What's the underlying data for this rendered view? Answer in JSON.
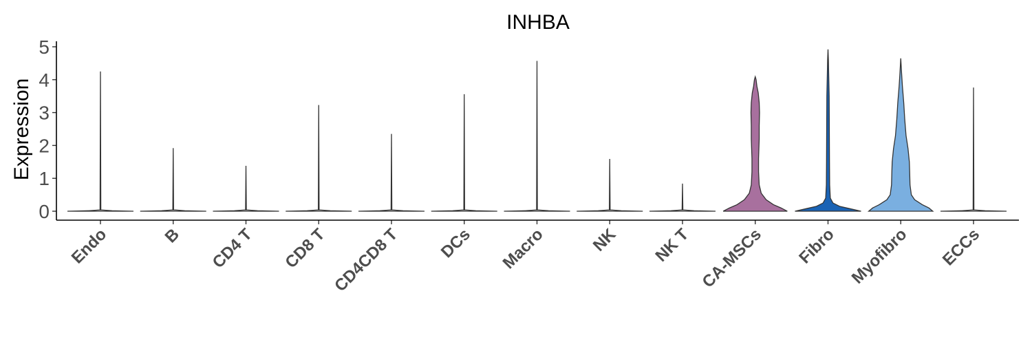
{
  "chart_data": {
    "type": "violin",
    "title": "INHBA",
    "xlabel": "",
    "ylabel": "Expression",
    "ylim": [
      0,
      5
    ],
    "yticks": [
      "0",
      "1",
      "2",
      "3",
      "4",
      "5"
    ],
    "grid": false,
    "legend": "none",
    "categories": [
      "Endo",
      "B",
      "CD4 T",
      "CD8 T",
      "CD4CD8 T",
      "DCs",
      "Macro",
      "NK",
      "NK T",
      "CA-MSCs",
      "Fibro",
      "Myofibro",
      "ECCs"
    ],
    "max_values": [
      4.25,
      1.92,
      1.38,
      3.23,
      2.35,
      3.56,
      4.57,
      1.59,
      0.84,
      4.09,
      4.92,
      4.65,
      3.76
    ],
    "density_profiles": [
      null,
      null,
      null,
      null,
      null,
      null,
      null,
      null,
      null,
      [
        [
          0,
          0.97
        ],
        [
          0.1,
          0.78
        ],
        [
          0.2,
          0.55
        ],
        [
          0.35,
          0.33
        ],
        [
          0.55,
          0.18
        ],
        [
          0.8,
          0.12
        ],
        [
          1.2,
          0.1
        ],
        [
          1.6,
          0.1
        ],
        [
          1.9,
          0.11
        ],
        [
          2.2,
          0.12
        ],
        [
          2.6,
          0.12
        ],
        [
          3.0,
          0.13
        ],
        [
          3.3,
          0.12
        ],
        [
          3.6,
          0.09
        ],
        [
          3.8,
          0.05
        ],
        [
          4.0,
          0.025
        ],
        [
          4.09,
          0
        ]
      ],
      [
        [
          0,
          1.0
        ],
        [
          0.08,
          0.65
        ],
        [
          0.15,
          0.35
        ],
        [
          0.25,
          0.15
        ],
        [
          0.4,
          0.07
        ],
        [
          0.8,
          0.05
        ],
        [
          1.5,
          0.045
        ],
        [
          2.5,
          0.04
        ],
        [
          3.5,
          0.035
        ],
        [
          4.2,
          0.02
        ],
        [
          4.6,
          0.012
        ],
        [
          4.92,
          0
        ]
      ],
      [
        [
          0,
          0.97
        ],
        [
          0.1,
          0.85
        ],
        [
          0.2,
          0.65
        ],
        [
          0.35,
          0.42
        ],
        [
          0.5,
          0.32
        ],
        [
          0.8,
          0.28
        ],
        [
          1.2,
          0.27
        ],
        [
          1.5,
          0.26
        ],
        [
          1.9,
          0.22
        ],
        [
          2.3,
          0.16
        ],
        [
          2.8,
          0.12
        ],
        [
          3.3,
          0.09
        ],
        [
          3.8,
          0.05
        ],
        [
          4.2,
          0.025
        ],
        [
          4.65,
          0
        ]
      ],
      null
    ],
    "colors": [
      "#ffffff",
      "#ffffff",
      "#ffffff",
      "#ffffff",
      "#ffffff",
      "#ffffff",
      "#ffffff",
      "#ffffff",
      "#ffffff",
      "#a8709e",
      "#1a63b5",
      "#7aafe0",
      "#ffffff"
    ]
  }
}
